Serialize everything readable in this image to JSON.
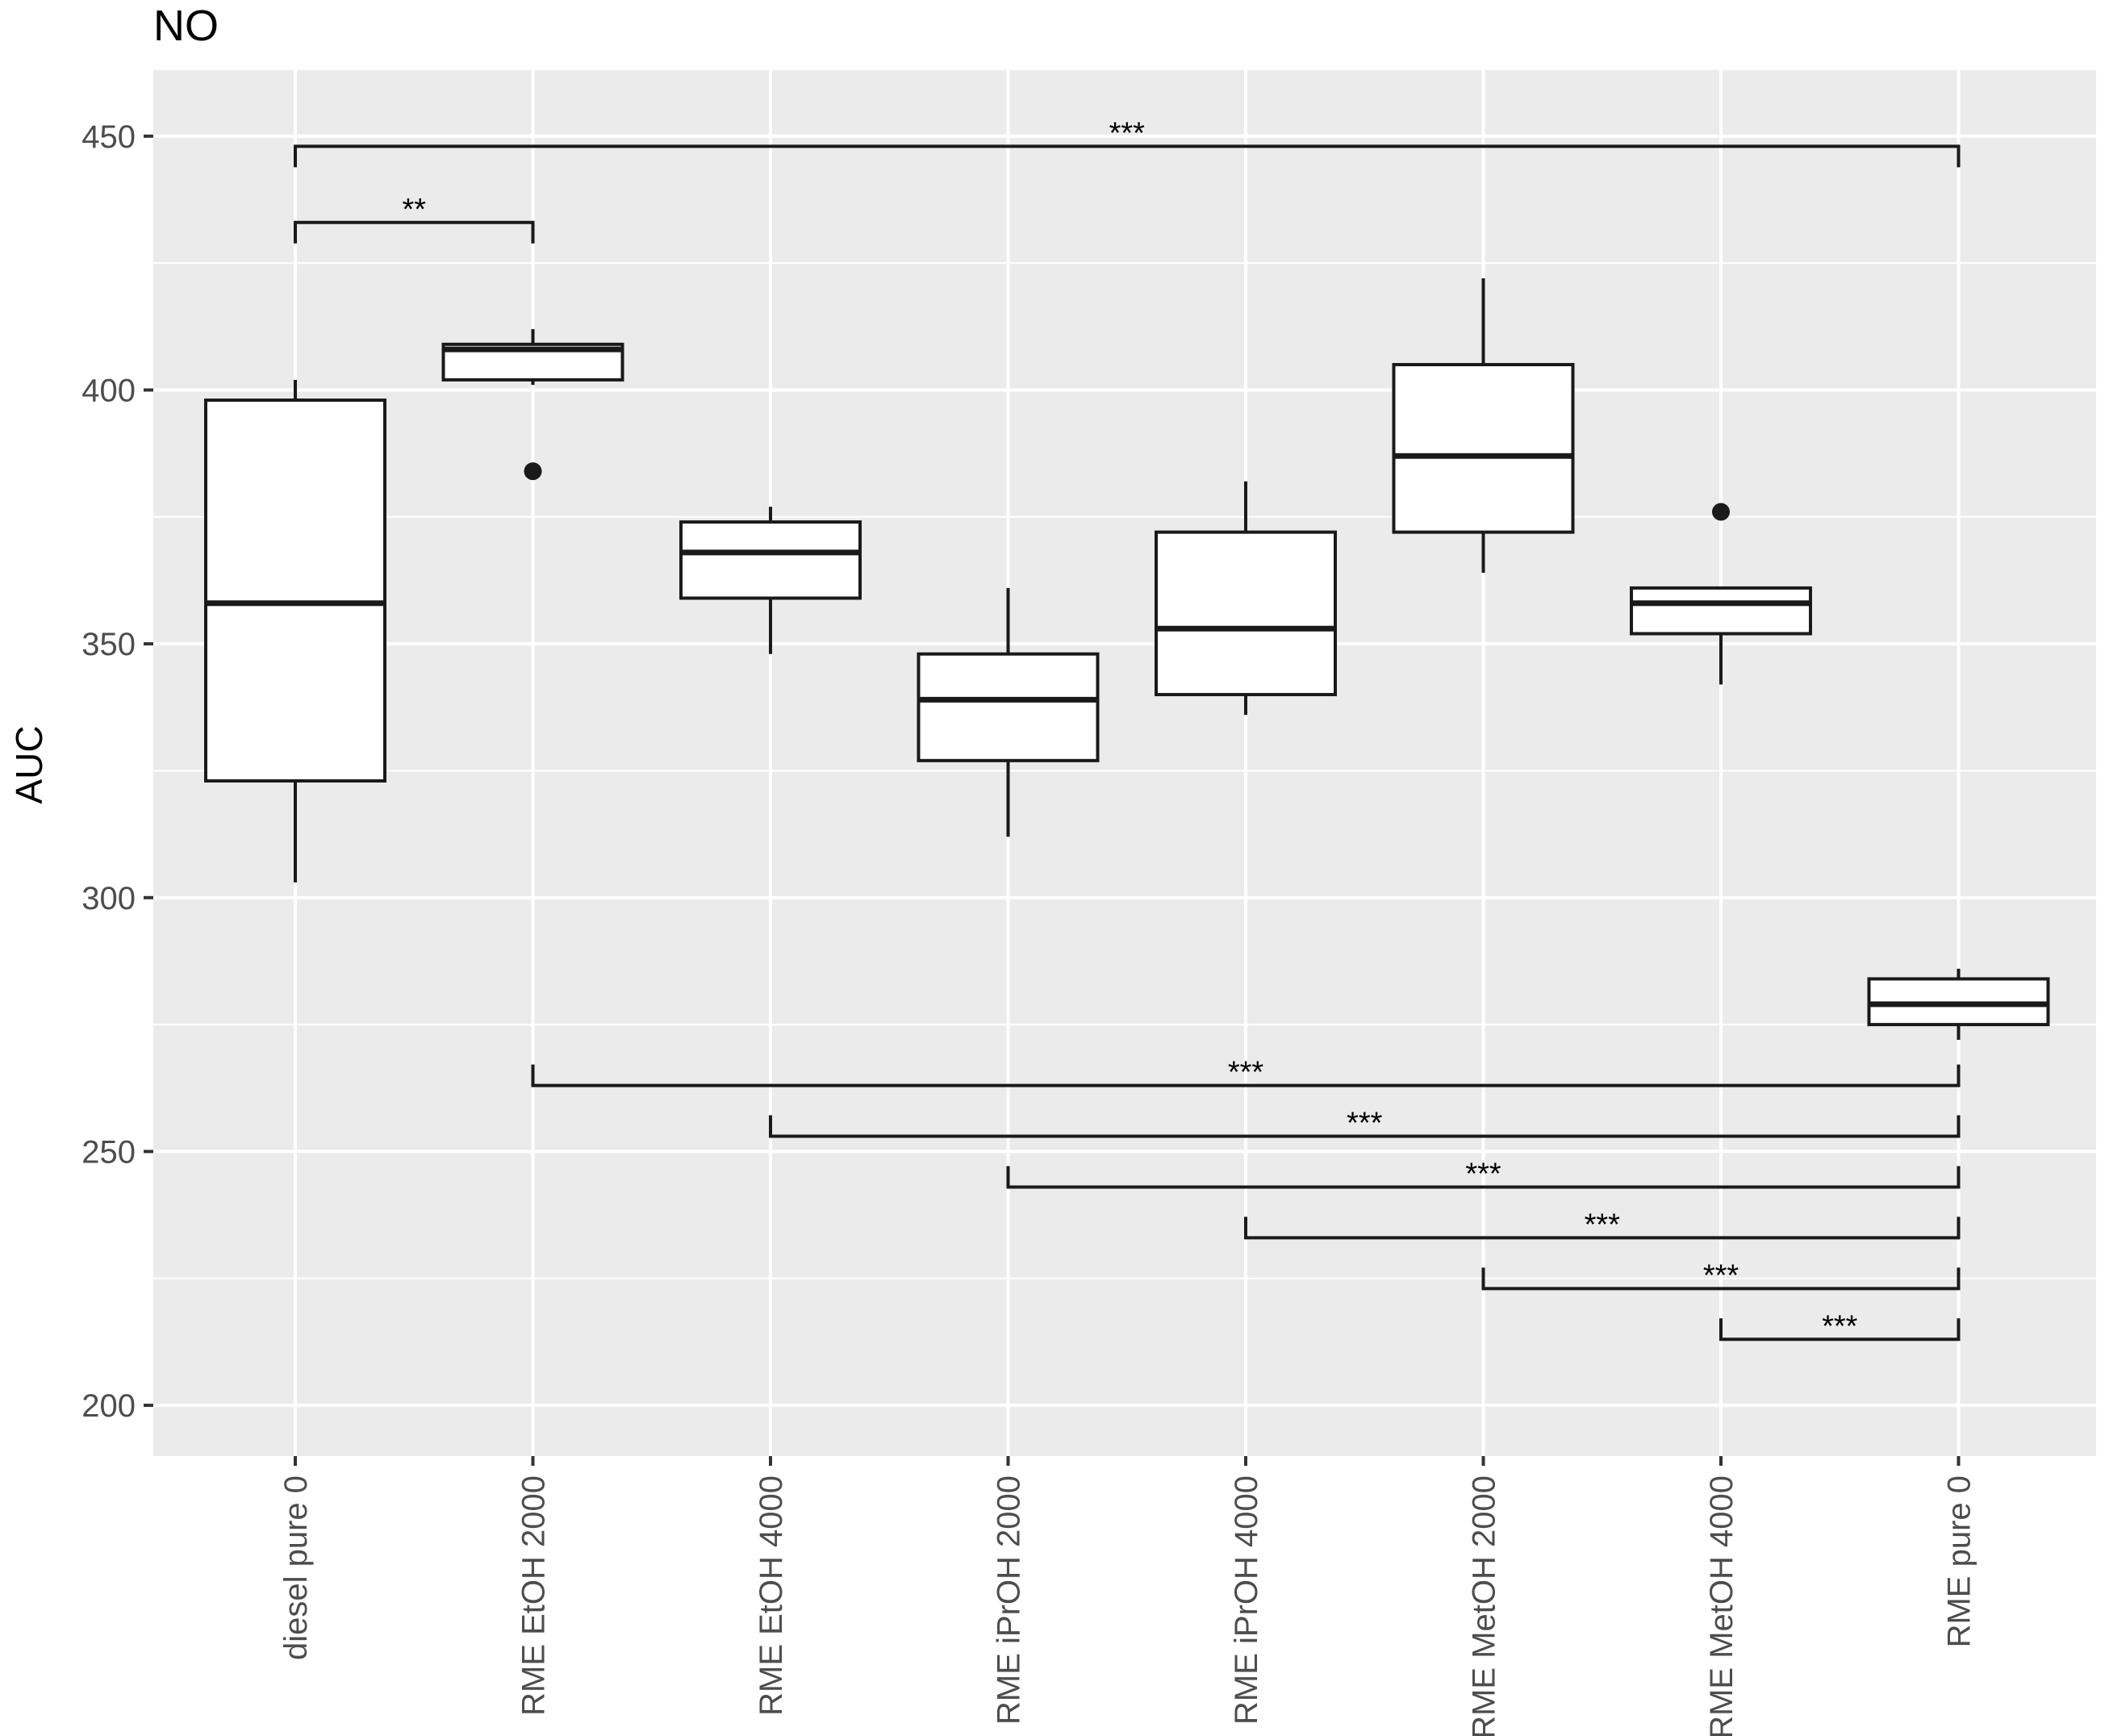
{
  "chart_data": {
    "type": "boxplot",
    "title": "NO",
    "xlabel": "",
    "ylabel": "AUC",
    "ylim": [
      190,
      463
    ],
    "yticks": [
      200,
      250,
      300,
      350,
      400,
      450
    ],
    "categories": [
      "diesel pure 0",
      "RME EtOH 2000",
      "RME EtOH 4000",
      "RME iPrOH 2000",
      "RME iPrOH 4000",
      "RME MetOH 2000",
      "RME MetOH 4000",
      "RME pure 0"
    ],
    "boxes": [
      {
        "category": "diesel pure 0",
        "whisker_low": 303,
        "q1": 323,
        "median": 358,
        "q3": 398,
        "whisker_high": 402,
        "outliers": []
      },
      {
        "category": "RME EtOH 2000",
        "whisker_low": 401,
        "q1": 402,
        "median": 408,
        "q3": 409,
        "whisker_high": 412,
        "outliers": [
          384
        ]
      },
      {
        "category": "RME EtOH 4000",
        "whisker_low": 348,
        "q1": 359,
        "median": 368,
        "q3": 374,
        "whisker_high": 377,
        "outliers": []
      },
      {
        "category": "RME iPrOH 2000",
        "whisker_low": 312,
        "q1": 327,
        "median": 339,
        "q3": 348,
        "whisker_high": 361,
        "outliers": []
      },
      {
        "category": "RME iPrOH 4000",
        "whisker_low": 336,
        "q1": 340,
        "median": 353,
        "q3": 372,
        "whisker_high": 382,
        "outliers": []
      },
      {
        "category": "RME MetOH 2000",
        "whisker_low": 364,
        "q1": 372,
        "median": 387,
        "q3": 405,
        "whisker_high": 422,
        "outliers": []
      },
      {
        "category": "RME MetOH 4000",
        "whisker_low": 342,
        "q1": 352,
        "median": 358,
        "q3": 361,
        "whisker_high": 361,
        "outliers": [
          376
        ]
      },
      {
        "category": "RME pure 0",
        "whisker_low": 272,
        "q1": 275,
        "median": 279,
        "q3": 284,
        "whisker_high": 286,
        "outliers": []
      }
    ],
    "significance": [
      {
        "from": "diesel pure 0",
        "to": "RME pure 0",
        "label": "***",
        "y": 448,
        "direction": "down"
      },
      {
        "from": "diesel pure 0",
        "to": "RME EtOH 2000",
        "label": "**",
        "y": 433,
        "direction": "down"
      },
      {
        "from": "RME EtOH 2000",
        "to": "RME pure 0",
        "label": "***",
        "y": 263,
        "direction": "up"
      },
      {
        "from": "RME EtOH 4000",
        "to": "RME pure 0",
        "label": "***",
        "y": 253,
        "direction": "up"
      },
      {
        "from": "RME iPrOH 2000",
        "to": "RME pure 0",
        "label": "***",
        "y": 243,
        "direction": "up"
      },
      {
        "from": "RME iPrOH 4000",
        "to": "RME pure 0",
        "label": "***",
        "y": 233,
        "direction": "up"
      },
      {
        "from": "RME MetOH 2000",
        "to": "RME pure 0",
        "label": "***",
        "y": 223,
        "direction": "up"
      },
      {
        "from": "RME MetOH 4000",
        "to": "RME pure 0",
        "label": "***",
        "y": 213,
        "direction": "up"
      }
    ],
    "colors": {
      "panel_background": "#ebebeb",
      "grid": "#ffffff",
      "box_fill": "#ffffff",
      "box_stroke": "#1a1a1a",
      "tick_text": "#4d4d4d"
    }
  }
}
